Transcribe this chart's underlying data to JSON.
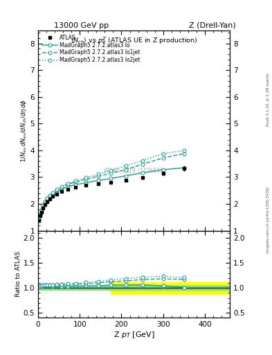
{
  "title_left": "13000 GeV pp",
  "title_right": "Z (Drell-Yan)",
  "plot_title": "<N_{ch}> vs p^{Z}_{T} (ATLAS UE in Z production)",
  "ylabel_main": "1/N_{ev} dN_{ev}/dN_{ch}/dη dφ",
  "ylabel_ratio": "Ratio to ATLAS",
  "xlabel": "Z p_{T} [GeV]",
  "right_label_top": "Rivet 3.1.10, ≥ 3.1M events",
  "right_label_bottom": "mcplots.cern.ch [arXiv:1306.3436]",
  "watermark": "ATLAS_2019_I1736531",
  "ylim_main": [
    1.0,
    8.5
  ],
  "ylim_ratio": [
    0.4,
    2.15
  ],
  "xlim": [
    0,
    460
  ],
  "yticks_main": [
    1,
    2,
    3,
    4,
    5,
    6,
    7,
    8
  ],
  "yticks_ratio": [
    0.5,
    1.0,
    1.5,
    2.0
  ],
  "xticks": [
    0,
    100,
    200,
    300,
    400
  ],
  "atlas_x": [
    2,
    5,
    8,
    12,
    17,
    22,
    28,
    35,
    45,
    57,
    72,
    90,
    115,
    145,
    175,
    210,
    250,
    300,
    350
  ],
  "atlas_y": [
    1.38,
    1.55,
    1.7,
    1.84,
    1.97,
    2.08,
    2.18,
    2.28,
    2.37,
    2.47,
    2.55,
    2.62,
    2.69,
    2.76,
    2.8,
    2.88,
    2.98,
    3.15,
    3.32
  ],
  "atlas_yerr": [
    0.02,
    0.02,
    0.02,
    0.02,
    0.02,
    0.02,
    0.02,
    0.02,
    0.03,
    0.03,
    0.03,
    0.03,
    0.04,
    0.04,
    0.05,
    0.06,
    0.07,
    0.08,
    0.1
  ],
  "lo_x": [
    2,
    5,
    8,
    12,
    17,
    22,
    28,
    35,
    45,
    57,
    72,
    90,
    115,
    145,
    175,
    210,
    250,
    300,
    350
  ],
  "lo_y": [
    1.42,
    1.6,
    1.76,
    1.91,
    2.05,
    2.16,
    2.26,
    2.36,
    2.46,
    2.56,
    2.64,
    2.72,
    2.79,
    2.88,
    2.95,
    3.05,
    3.16,
    3.28,
    3.35
  ],
  "lo1jet_x": [
    2,
    5,
    8,
    12,
    17,
    22,
    28,
    35,
    45,
    57,
    72,
    90,
    115,
    145,
    175,
    210,
    250,
    300,
    350
  ],
  "lo1jet_y": [
    1.43,
    1.62,
    1.78,
    1.94,
    2.08,
    2.2,
    2.3,
    2.4,
    2.52,
    2.63,
    2.73,
    2.82,
    2.92,
    3.04,
    3.15,
    3.28,
    3.48,
    3.72,
    3.88
  ],
  "lo2jet_x": [
    2,
    5,
    8,
    12,
    17,
    22,
    28,
    35,
    45,
    57,
    72,
    90,
    115,
    145,
    175,
    210,
    250,
    300,
    350
  ],
  "lo2jet_y": [
    1.43,
    1.62,
    1.78,
    1.95,
    2.09,
    2.21,
    2.32,
    2.42,
    2.54,
    2.66,
    2.76,
    2.86,
    2.98,
    3.12,
    3.25,
    3.42,
    3.62,
    3.88,
    4.0
  ],
  "ratio_lo_y": [
    1.029,
    1.032,
    1.035,
    1.038,
    1.041,
    1.038,
    1.037,
    1.035,
    1.038,
    1.036,
    1.035,
    1.038,
    1.037,
    1.043,
    1.054,
    1.059,
    1.06,
    1.041,
    1.009
  ],
  "ratio_lo1jet_y": [
    1.036,
    1.045,
    1.047,
    1.054,
    1.056,
    1.058,
    1.055,
    1.053,
    1.063,
    1.065,
    1.071,
    1.076,
    1.082,
    1.101,
    1.125,
    1.139,
    1.168,
    1.181,
    1.17
  ],
  "ratio_lo2jet_y": [
    1.036,
    1.045,
    1.047,
    1.06,
    1.061,
    1.063,
    1.064,
    1.061,
    1.072,
    1.077,
    1.082,
    1.092,
    1.108,
    1.13,
    1.161,
    1.188,
    1.214,
    1.232,
    1.206
  ],
  "teal_color": "#2aa198",
  "data_color": "#000000",
  "green_color": "#80dd80",
  "yellow_color": "#ffff00"
}
